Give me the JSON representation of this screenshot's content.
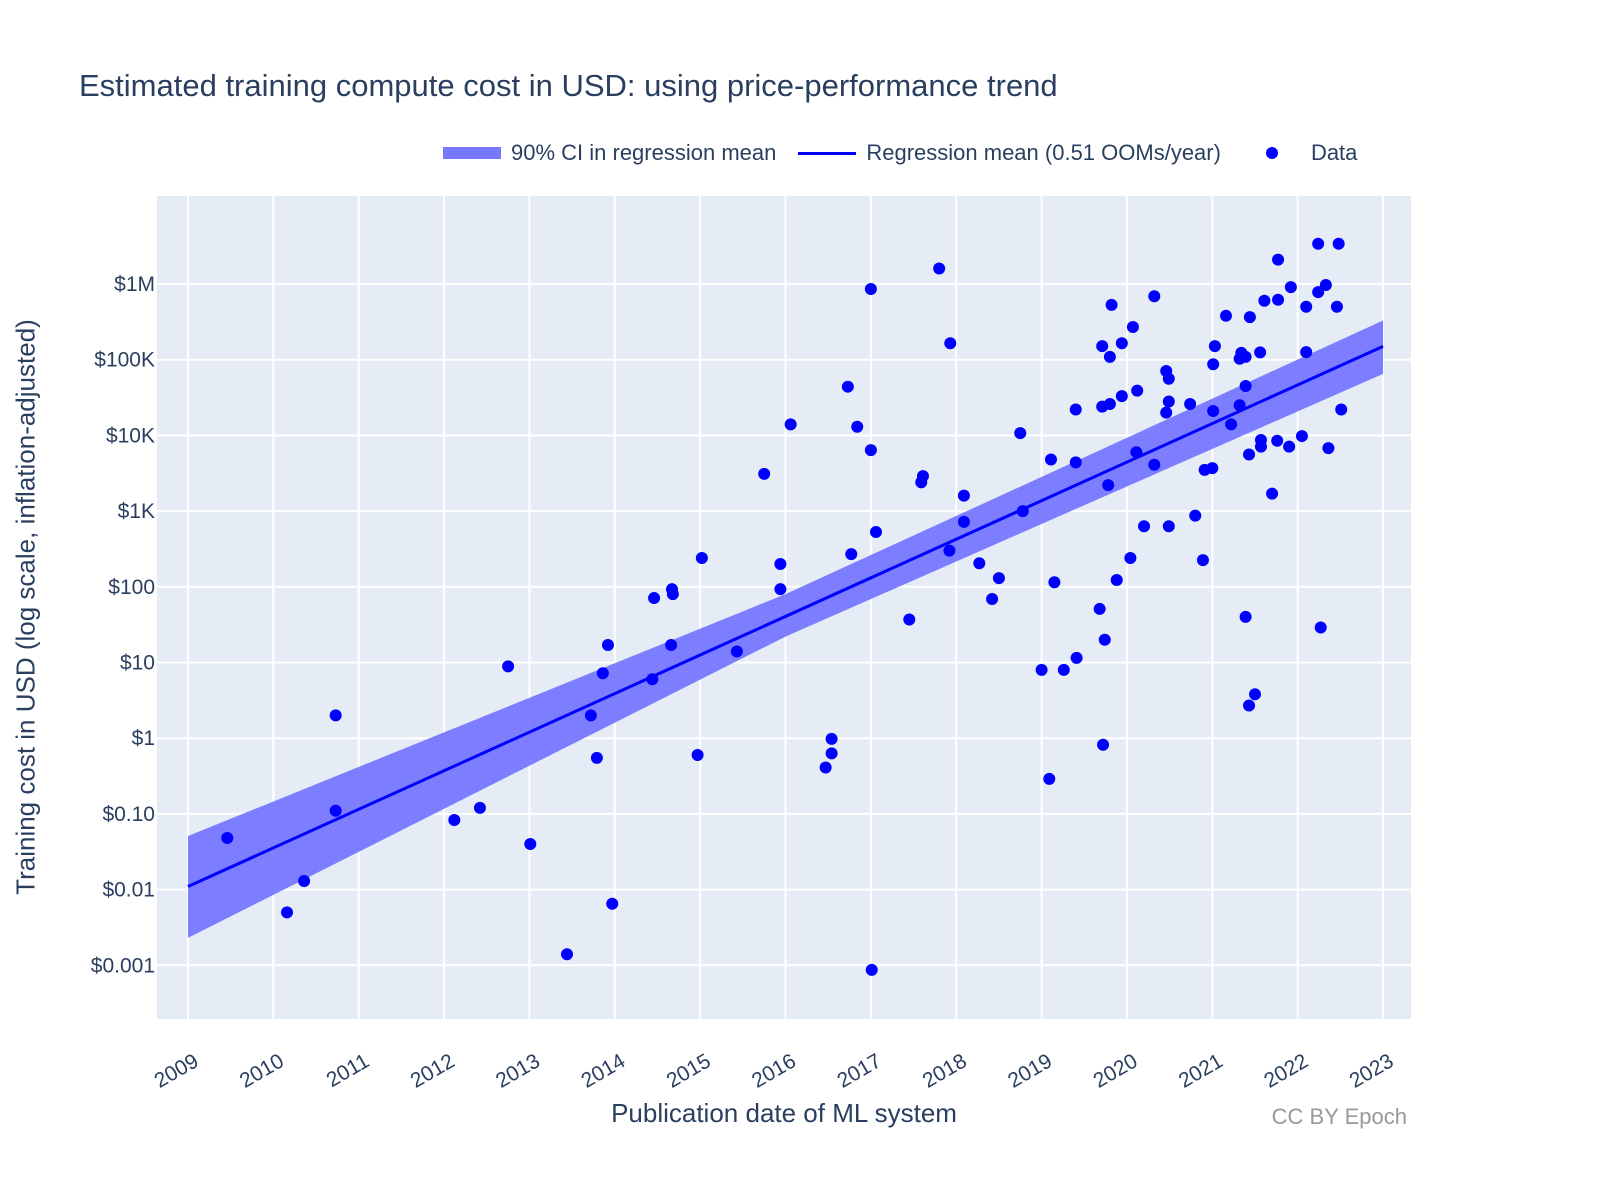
{
  "chart_data": {
    "type": "scatter",
    "title": "Estimated training compute cost in USD: using price-performance trend",
    "xlabel": "Publication date of ML system",
    "ylabel": "Training cost in USD (log scale, inflation-adjusted)",
    "credit": "CC BY Epoch",
    "xlim": [
      2008.64,
      2023.33
    ],
    "ylim_usd": [
      0.0002,
      40000000
    ],
    "y_scale": "log",
    "grid": true,
    "legend_placement": "top",
    "x_ticks": [
      2009,
      2010,
      2011,
      2012,
      2013,
      2014,
      2015,
      2016,
      2017,
      2018,
      2019,
      2020,
      2021,
      2022,
      2023
    ],
    "x_tick_labels": [
      "2009",
      "2010",
      "2011",
      "2012",
      "2013",
      "2014",
      "2015",
      "2016",
      "2017",
      "2018",
      "2019",
      "2020",
      "2021",
      "2022",
      "2023"
    ],
    "y_ticks": [
      0.001,
      0.01,
      0.1,
      1,
      10,
      100,
      1000,
      10000,
      100000,
      1000000
    ],
    "y_tick_labels": [
      "$0.001",
      "$0.01",
      "$0.10",
      "$1",
      "$10",
      "$100",
      "$1K",
      "$10K",
      "$100K",
      "$1M"
    ],
    "colors": {
      "band": "#7777ff",
      "line": "#0000ff",
      "points": "#0000ff",
      "plot_bg": "#e5ecf6"
    },
    "legend": [
      {
        "name": "90% CI in regression mean",
        "kind": "band"
      },
      {
        "name": "Regression mean (0.51 OOMs/year)",
        "kind": "line"
      },
      {
        "name": "Data",
        "kind": "marker"
      }
    ],
    "regression_mean": [
      [
        2009,
        0.011
      ],
      [
        2023,
        150000
      ]
    ],
    "ci_90": {
      "years": [
        2009,
        2016,
        2023
      ],
      "lower": [
        0.0023,
        22,
        65000
      ],
      "upper": [
        0.051,
        80,
        330000
      ]
    },
    "points": [
      [
        2009.46,
        0.048
      ],
      [
        2010.16,
        0.005
      ],
      [
        2010.36,
        0.013
      ],
      [
        2010.73,
        2.0
      ],
      [
        2010.73,
        0.11
      ],
      [
        2012.12,
        0.083
      ],
      [
        2012.42,
        0.12
      ],
      [
        2012.75,
        8.9
      ],
      [
        2013.01,
        0.04
      ],
      [
        2013.44,
        0.0014
      ],
      [
        2013.72,
        2.0
      ],
      [
        2013.79,
        0.55
      ],
      [
        2013.86,
        7.2
      ],
      [
        2013.92,
        17
      ],
      [
        2013.97,
        0.0065
      ],
      [
        2014.44,
        6
      ],
      [
        2014.46,
        71
      ],
      [
        2014.66,
        17
      ],
      [
        2014.67,
        93
      ],
      [
        2014.68,
        80
      ],
      [
        2014.97,
        0.6
      ],
      [
        2015.02,
        240
      ],
      [
        2015.43,
        14
      ],
      [
        2015.75,
        3100
      ],
      [
        2015.94,
        200
      ],
      [
        2015.94,
        93
      ],
      [
        2016.06,
        14000
      ],
      [
        2016.47,
        0.41
      ],
      [
        2016.54,
        0.98
      ],
      [
        2016.54,
        0.63
      ],
      [
        2016.73,
        44000
      ],
      [
        2016.77,
        270
      ],
      [
        2016.84,
        13000
      ],
      [
        2017.0,
        860000
      ],
      [
        2017.0,
        6400
      ],
      [
        2017.01,
        0.00087
      ],
      [
        2017.06,
        530
      ],
      [
        2017.45,
        37
      ],
      [
        2017.59,
        2400
      ],
      [
        2017.61,
        2900
      ],
      [
        2017.8,
        1600000
      ],
      [
        2017.93,
        165000
      ],
      [
        2017.92,
        300
      ],
      [
        2018.09,
        1600
      ],
      [
        2018.09,
        720
      ],
      [
        2018.27,
        205
      ],
      [
        2018.42,
        69
      ],
      [
        2018.5,
        130
      ],
      [
        2018.75,
        10700
      ],
      [
        2018.78,
        1000
      ],
      [
        2019.0,
        8
      ],
      [
        2019.09,
        0.29
      ],
      [
        2019.11,
        4800
      ],
      [
        2019.15,
        115
      ],
      [
        2019.26,
        8
      ],
      [
        2019.4,
        22000
      ],
      [
        2019.4,
        4400
      ],
      [
        2019.41,
        11.5
      ],
      [
        2019.68,
        51
      ],
      [
        2019.71,
        151000
      ],
      [
        2019.71,
        24000
      ],
      [
        2019.72,
        0.82
      ],
      [
        2019.74,
        20
      ],
      [
        2019.78,
        2200
      ],
      [
        2019.8,
        109000
      ],
      [
        2019.8,
        26000
      ],
      [
        2019.82,
        530000
      ],
      [
        2019.88,
        123
      ],
      [
        2019.94,
        165000
      ],
      [
        2019.94,
        33000
      ],
      [
        2020.04,
        240
      ],
      [
        2020.07,
        270000
      ],
      [
        2020.11,
        6000
      ],
      [
        2020.12,
        39000
      ],
      [
        2020.2,
        630
      ],
      [
        2020.32,
        690000
      ],
      [
        2020.32,
        4100
      ],
      [
        2020.46,
        71000
      ],
      [
        2020.46,
        20000
      ],
      [
        2020.49,
        56000
      ],
      [
        2020.49,
        28000
      ],
      [
        2020.49,
        630
      ],
      [
        2020.74,
        26000
      ],
      [
        2020.8,
        870
      ],
      [
        2020.89,
        225
      ],
      [
        2020.91,
        3500
      ],
      [
        2021.0,
        3700
      ],
      [
        2021.01,
        87000
      ],
      [
        2021.01,
        21000
      ],
      [
        2021.03,
        151000
      ],
      [
        2021.16,
        380000
      ],
      [
        2021.22,
        14000
      ],
      [
        2021.32,
        25000
      ],
      [
        2021.32,
        103000
      ],
      [
        2021.34,
        123000
      ],
      [
        2021.39,
        109000
      ],
      [
        2021.39,
        45000
      ],
      [
        2021.39,
        40
      ],
      [
        2021.43,
        2.7
      ],
      [
        2021.43,
        5600
      ],
      [
        2021.44,
        365000
      ],
      [
        2021.5,
        3.8
      ],
      [
        2021.56,
        125000
      ],
      [
        2021.57,
        8700
      ],
      [
        2021.57,
        7100
      ],
      [
        2021.61,
        600000
      ],
      [
        2021.7,
        1700
      ],
      [
        2021.77,
        2100000
      ],
      [
        2021.77,
        620000
      ],
      [
        2021.76,
        8500
      ],
      [
        2021.9,
        7100
      ],
      [
        2021.92,
        910000
      ],
      [
        2022.05,
        9800
      ],
      [
        2022.1,
        500000
      ],
      [
        2022.1,
        126000
      ],
      [
        2022.24,
        3400000
      ],
      [
        2022.24,
        780000
      ],
      [
        2022.27,
        29
      ],
      [
        2022.33,
        970000
      ],
      [
        2022.36,
        6800
      ],
      [
        2022.46,
        500000
      ],
      [
        2022.48,
        3400000
      ],
      [
        2022.51,
        22000
      ]
    ]
  }
}
